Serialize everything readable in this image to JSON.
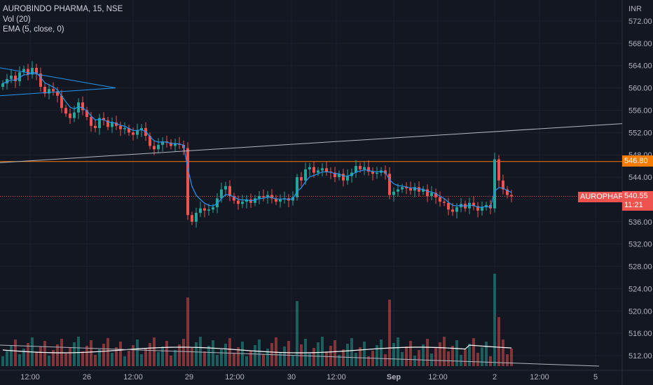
{
  "header": {
    "symbol_line": "AUROBINDO PHARMA, 15, NSE",
    "indicator_1": "Vol (20)",
    "indicator_2": "EMA (5, close, 0)"
  },
  "axis": {
    "currency": "INR"
  },
  "last_price": {
    "symbol_label": "AUROPHARMA",
    "value": "540.55",
    "countdown": "11:21"
  },
  "level_line": {
    "value": "546.80"
  },
  "colors": {
    "background": "#131722",
    "up": "#26a69a",
    "down": "#ef5350",
    "ema": "#2196f3",
    "level": "#f57c00",
    "trendline": "#b2b5be"
  },
  "chart_data": {
    "type": "candlestick",
    "y_range": [
      510,
      573
    ],
    "y_ticks": [
      512,
      516,
      520,
      524,
      528,
      532,
      536,
      540,
      544,
      548,
      552,
      556,
      560,
      564,
      568,
      572
    ],
    "x_tick_labels": [
      "12:00",
      "26",
      "12:00",
      "29",
      "12:00",
      "30",
      "12:00",
      "Sep",
      "12:00",
      "2",
      "12:00",
      "5"
    ],
    "horizontal_level": 546.8,
    "current_price": 540.55,
    "price_series_close": [
      560.8,
      561.6,
      562.2,
      561.2,
      562.8,
      563.4,
      562.4,
      563.6,
      562.6,
      560.2,
      559.0,
      559.8,
      559.4,
      558.6,
      556.4,
      555.4,
      554.6,
      555.6,
      557.4,
      556.0,
      554.8,
      553.2,
      552.8,
      554.6,
      554.2,
      553.0,
      553.8,
      553.2,
      552.6,
      552.8,
      552.0,
      551.6,
      552.4,
      552.8,
      551.4,
      549.6,
      549.0,
      549.8,
      550.4,
      550.2,
      549.6,
      550.0,
      549.8,
      549.2,
      537.2,
      536.0,
      537.6,
      538.4,
      538.0,
      538.2,
      538.6,
      540.2,
      541.8,
      542.4,
      540.6,
      539.8,
      539.2,
      539.6,
      540.0,
      539.4,
      540.2,
      540.6,
      540.4,
      540.8,
      540.2,
      539.6,
      540.0,
      540.2,
      539.8,
      540.4,
      544.0,
      543.4,
      545.4,
      545.8,
      544.8,
      545.2,
      545.6,
      545.0,
      544.8,
      544.0,
      544.6,
      543.4,
      544.2,
      544.8,
      546.0,
      545.4,
      545.8,
      545.0,
      544.6,
      544.8,
      545.2,
      544.6,
      540.8,
      541.4,
      541.8,
      542.2,
      542.0,
      541.6,
      542.2,
      541.4,
      541.8,
      540.6,
      541.2,
      540.4,
      539.6,
      539.4,
      538.2,
      537.8,
      538.6,
      539.2,
      538.4,
      539.4,
      538.8,
      538.0,
      538.6,
      539.0,
      538.4,
      547.2,
      543.4,
      541.8,
      540.8,
      540.55
    ],
    "ema_period": 5,
    "volume_range_bars": 40
  }
}
